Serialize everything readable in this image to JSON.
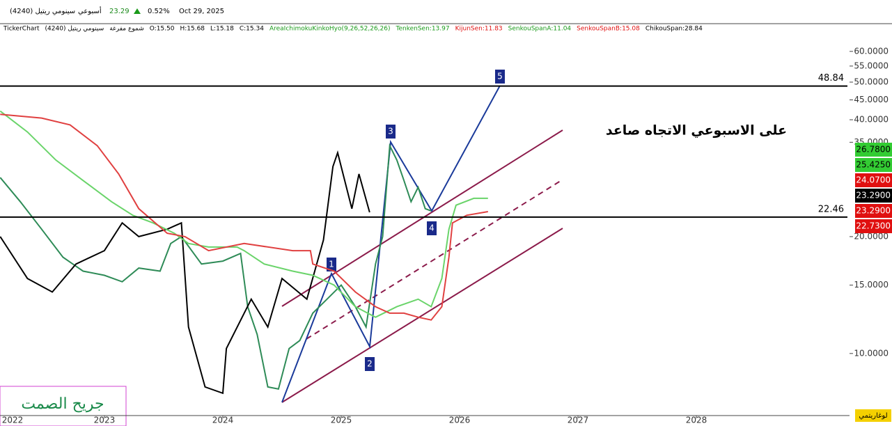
{
  "header": {
    "symbol": "سينومي ريتيل (4240)",
    "period": "أسبوعي",
    "price": "23.29",
    "change": "0.52%",
    "date": "Oct 29, 2025",
    "brand": "TickerChart",
    "symbol2": "سينومي ريتيل (4240)",
    "style": "شموع مفرغة",
    "ohlc": [
      "O:15.50",
      "H:15.68",
      "L:15.18",
      "C:15.34"
    ],
    "indicator": "AreaIchimokuKinkoHyo(9,26,52,26,26)",
    "indicator_values": [
      "TenkenSen:13.97",
      "KijunSen:11.83",
      "SenkouSpanA:11.04",
      "SenkouSpanB:15.08",
      "ChikouSpan:28.84"
    ]
  },
  "chart_data": {
    "type": "line",
    "log_scale": true,
    "scale_label": "لوغاريتمي",
    "annotation": "على الاسبوعي الاتجاه صاعد",
    "signature": "جريح الصمت",
    "wave_labels": [
      "1",
      "2",
      "3",
      "4",
      "5"
    ],
    "xlim": [
      2022.118,
      2029.294
    ],
    "xticks": [
      2022,
      2023,
      2024,
      2025,
      2026,
      2027,
      2028
    ],
    "ylim": [
      6.92,
      66.2
    ],
    "yticks": [
      {
        "value": 60,
        "label": "60.0000"
      },
      {
        "value": 55,
        "label": "55.0000"
      },
      {
        "value": 50,
        "label": "50.0000"
      },
      {
        "value": 45,
        "label": "45.0000"
      },
      {
        "value": 40,
        "label": "40.0000"
      },
      {
        "value": 35,
        "label": "35.0000"
      },
      {
        "value": 20,
        "label": "20.0000"
      },
      {
        "value": 15,
        "label": "15.0000"
      },
      {
        "value": 10,
        "label": "10.0000"
      }
    ],
    "hlines": [
      48.84,
      22.46
    ],
    "price_labels": [
      {
        "value": 26.78,
        "label": "26.7800",
        "color": "#33cc33"
      },
      {
        "value": 25.425,
        "label": "25.4250",
        "color": "#33cc33"
      },
      {
        "value": 24.07,
        "label": "24.0700",
        "color": "#e01010"
      },
      {
        "value": 23.29,
        "label": "23.2900",
        "color": "#000000"
      },
      {
        "value": 23.29,
        "label": "23.2900",
        "color": "#e01010"
      },
      {
        "value": 22.73,
        "label": "22.7300",
        "color": "#e01010"
      }
    ],
    "series": [
      {
        "color": "#2e8b57",
        "x": [
          2022.12,
          2022.29,
          2022.47,
          2022.65,
          2022.82,
          2023.0,
          2023.15,
          2023.29,
          2023.47,
          2023.56,
          2023.65,
          2023.82,
          2024.0,
          2024.15,
          2024.21,
          2024.29,
          2024.38,
          2024.47,
          2024.56,
          2024.65,
          2024.76,
          2024.88,
          2025.0,
          2025.12,
          2025.21,
          2025.29,
          2025.35,
          2025.41,
          2025.47,
          2025.53,
          2025.59,
          2025.65,
          2025.71,
          2025.76
        ],
        "values": [
          28.4,
          24.6,
          20.9,
          17.7,
          16.3,
          15.9,
          15.3,
          16.6,
          16.3,
          19.2,
          20.0,
          17.0,
          17.3,
          18.1,
          13.2,
          11.2,
          8.2,
          8.1,
          10.3,
          10.8,
          12.7,
          13.8,
          15.0,
          13.2,
          11.7,
          17.0,
          20.0,
          34.3,
          31.5,
          27.9,
          24.6,
          26.8,
          23.6,
          23.3
        ]
      },
      {
        "color": "#000000",
        "x": [
          2022.12,
          2022.35,
          2022.56,
          2022.76,
          2023.0,
          2023.15,
          2023.29,
          2023.53,
          2023.65,
          2023.71,
          2023.85,
          2024.0,
          2024.03,
          2024.24,
          2024.38,
          2024.5,
          2024.71,
          2024.85,
          2024.93,
          2024.97,
          2025.09,
          2025.15,
          2025.24
        ],
        "values": [
          20.0,
          15.6,
          14.4,
          17.0,
          18.4,
          21.7,
          20.0,
          20.9,
          21.7,
          11.7,
          8.2,
          7.9,
          10.3,
          13.8,
          11.7,
          15.6,
          13.8,
          19.6,
          30.3,
          32.9,
          23.6,
          29.0,
          23.1
        ]
      },
      {
        "color": "#6ad46a",
        "x": [
          2022.12,
          2022.35,
          2022.59,
          2022.82,
          2023.06,
          2023.24,
          2023.41,
          2023.59,
          2023.71,
          2023.88,
          2024.12,
          2024.18,
          2024.35,
          2024.59,
          2024.76,
          2024.94,
          2025.12,
          2025.29,
          2025.47,
          2025.65,
          2025.76,
          2025.85,
          2025.91,
          2025.97,
          2026.12,
          2026.24
        ],
        "values": [
          42.1,
          37.2,
          31.5,
          27.9,
          24.6,
          22.7,
          21.7,
          20.4,
          19.2,
          18.8,
          18.8,
          18.4,
          17.0,
          16.3,
          15.9,
          15.0,
          13.2,
          12.4,
          13.2,
          13.8,
          13.2,
          15.6,
          20.9,
          24.1,
          25.1,
          25.1
        ]
      },
      {
        "color": "#e04040",
        "x": [
          2022.12,
          2022.47,
          2022.71,
          2022.94,
          2023.12,
          2023.29,
          2023.53,
          2023.68,
          2023.88,
          2024.18,
          2024.59,
          2024.74,
          2024.76,
          2024.94,
          2025.12,
          2025.29,
          2025.41,
          2025.53,
          2025.65,
          2025.76,
          2025.85,
          2025.91,
          2025.94,
          2026.06,
          2026.24
        ],
        "values": [
          41.3,
          40.4,
          38.8,
          34.3,
          29.0,
          23.6,
          20.4,
          20.0,
          18.4,
          19.2,
          18.4,
          18.4,
          17.0,
          16.3,
          14.4,
          13.2,
          12.7,
          12.7,
          12.4,
          12.2,
          13.2,
          17.7,
          21.7,
          22.7,
          23.2
        ]
      }
    ]
  }
}
